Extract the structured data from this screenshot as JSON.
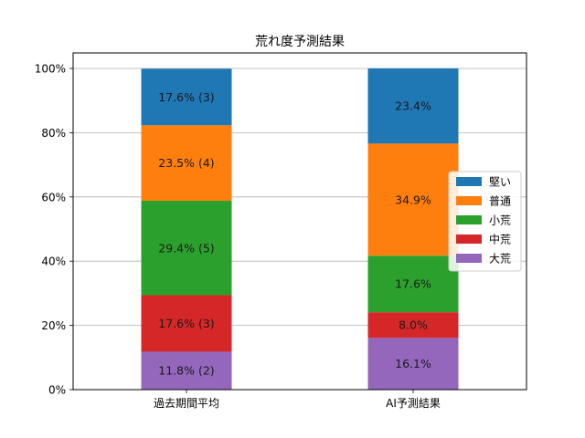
{
  "chart_data": {
    "type": "bar",
    "stacked": true,
    "title": "荒れ度予測結果",
    "xlabel": "",
    "ylabel": "",
    "categories": [
      "過去期間平均",
      "AI予測結果"
    ],
    "ylim": [
      0,
      100
    ],
    "y_ticks": [
      "0%",
      "20%",
      "40%",
      "60%",
      "80%",
      "100%"
    ],
    "y_tick_values": [
      0,
      20,
      40,
      60,
      80,
      100
    ],
    "grid": true,
    "legend_position": "right",
    "series": [
      {
        "name": "大荒",
        "color": "#9467bd",
        "values": [
          11.8,
          16.1
        ],
        "labels": [
          "11.8% (2)",
          "16.1%"
        ]
      },
      {
        "name": "中荒",
        "color": "#d62728",
        "values": [
          17.6,
          8.0
        ],
        "labels": [
          "17.6% (3)",
          "8.0%"
        ]
      },
      {
        "name": "小荒",
        "color": "#2ca02c",
        "values": [
          29.4,
          17.6
        ],
        "labels": [
          "29.4% (5)",
          "17.6%"
        ]
      },
      {
        "name": "普通",
        "color": "#ff7f0e",
        "values": [
          23.5,
          34.9
        ],
        "labels": [
          "23.5% (4)",
          "34.9%"
        ]
      },
      {
        "name": "堅い",
        "color": "#1f77b4",
        "values": [
          17.6,
          23.4
        ],
        "labels": [
          "17.6% (3)",
          "23.4%"
        ]
      }
    ],
    "legend_order": [
      "堅い",
      "普通",
      "小荒",
      "中荒",
      "大荒"
    ]
  }
}
